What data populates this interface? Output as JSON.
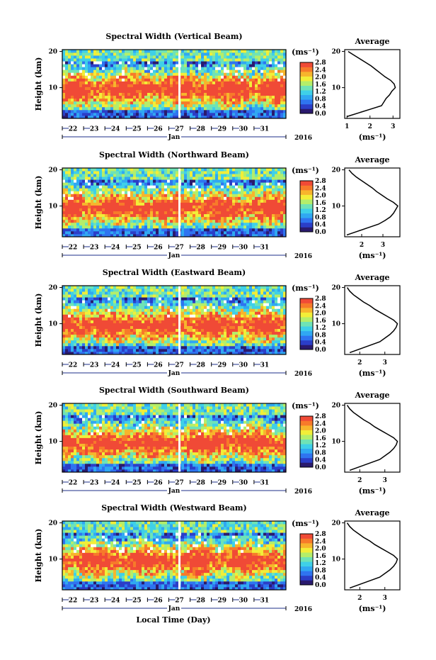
{
  "figure": {
    "xlabel": "Local Time (Day)",
    "month_label": "Jan",
    "year_label": "2016"
  },
  "colorbar": {
    "unit": "(ms⁻¹)",
    "ticks": [
      "0.0",
      "0.4",
      "0.8",
      "1.2",
      "1.6",
      "2.0",
      "2.4",
      "2.8"
    ],
    "colors": [
      "#2a1a6e",
      "#2b3ec8",
      "#2f74f0",
      "#30a8f2",
      "#3fd0e8",
      "#6fe3b6",
      "#b4ee6a",
      "#f2ee38",
      "#f7b52c",
      "#f77a2a",
      "#f04a36"
    ]
  },
  "chart_data": [
    {
      "type": "heatmap",
      "title": "Spectral Width (Vertical Beam)",
      "ylabel": "Height (km)",
      "x_ticks": [
        "22",
        "23",
        "24",
        "25",
        "26",
        "27",
        "28",
        "29",
        "30",
        "31"
      ],
      "y_ticks": [
        "10",
        "20"
      ],
      "ylim": [
        1.5,
        20.5
      ],
      "xlim": [
        21.5,
        32.0
      ],
      "data_gap_day": 27.0,
      "avg_title": "Average",
      "avg_unit": "(ms⁻¹)",
      "avg_xticks": [
        "1",
        "2",
        "3"
      ],
      "avg_xtick_values": [
        1,
        2,
        3
      ],
      "avg_xlim": [
        0.9,
        3.3
      ],
      "avg_profile": {
        "height": [
          2,
          3,
          4,
          5,
          6,
          7,
          8,
          9,
          10,
          11,
          12,
          13,
          14,
          15,
          16,
          17,
          18,
          19,
          20
        ],
        "value": [
          1.0,
          1.5,
          2.0,
          2.5,
          2.6,
          2.7,
          2.85,
          2.95,
          3.1,
          3.05,
          2.9,
          2.65,
          2.45,
          2.25,
          2.05,
          1.8,
          1.55,
          1.3,
          1.05
        ]
      }
    },
    {
      "type": "heatmap",
      "title": "Spectral Width (Northward Beam)",
      "ylabel": "Height (km)",
      "x_ticks": [
        "22",
        "23",
        "24",
        "25",
        "26",
        "27",
        "28",
        "29",
        "30",
        "31"
      ],
      "y_ticks": [
        "10",
        "20"
      ],
      "ylim": [
        1.5,
        20.5
      ],
      "xlim": [
        21.5,
        32.0
      ],
      "data_gap_day": 27.0,
      "avg_title": "Average",
      "avg_unit": "(ms⁻¹)",
      "avg_xticks": [
        "2",
        "3"
      ],
      "avg_xtick_values": [
        2,
        3
      ],
      "avg_xlim": [
        1.2,
        3.8
      ],
      "avg_profile": {
        "height": [
          2,
          3,
          4,
          5,
          6,
          7,
          8,
          9,
          10,
          11,
          12,
          13,
          14,
          15,
          16,
          17,
          18,
          19,
          20
        ],
        "value": [
          1.3,
          1.8,
          2.3,
          2.8,
          3.1,
          3.35,
          3.5,
          3.6,
          3.7,
          3.5,
          3.2,
          2.95,
          2.7,
          2.5,
          2.25,
          2.0,
          1.75,
          1.55,
          1.4
        ]
      }
    },
    {
      "type": "heatmap",
      "title": "Spectral Width (Eastward Beam)",
      "ylabel": "Height (km)",
      "x_ticks": [
        "22",
        "23",
        "24",
        "25",
        "26",
        "27",
        "28",
        "29",
        "30",
        "31"
      ],
      "y_ticks": [
        "10",
        "20"
      ],
      "ylim": [
        1.5,
        20.5
      ],
      "xlim": [
        21.5,
        32.0
      ],
      "data_gap_day": 27.0,
      "avg_title": "Average",
      "avg_unit": "(ms⁻¹)",
      "avg_xticks": [
        "2",
        "3"
      ],
      "avg_xtick_values": [
        2,
        3
      ],
      "avg_xlim": [
        1.4,
        3.6
      ],
      "avg_profile": {
        "height": [
          2,
          3,
          4,
          5,
          6,
          7,
          8,
          9,
          10,
          11,
          12,
          13,
          14,
          15,
          16,
          17,
          18,
          19,
          20
        ],
        "value": [
          1.6,
          2.0,
          2.4,
          2.8,
          3.0,
          3.2,
          3.35,
          3.45,
          3.5,
          3.35,
          3.1,
          2.85,
          2.6,
          2.4,
          2.15,
          1.95,
          1.75,
          1.6,
          1.5
        ]
      }
    },
    {
      "type": "heatmap",
      "title": "Spectral Width (Southward Beam)",
      "ylabel": "Height (km)",
      "x_ticks": [
        "22",
        "23",
        "24",
        "25",
        "26",
        "27",
        "28",
        "29",
        "30",
        "31"
      ],
      "y_ticks": [
        "10",
        "20"
      ],
      "ylim": [
        1.5,
        20.5
      ],
      "xlim": [
        21.5,
        32.0
      ],
      "data_gap_day": 27.0,
      "avg_title": "Average",
      "avg_unit": "(ms⁻¹)",
      "avg_xticks": [
        "2",
        "3"
      ],
      "avg_xtick_values": [
        2,
        3
      ],
      "avg_xlim": [
        1.4,
        3.6
      ],
      "avg_profile": {
        "height": [
          2,
          3,
          4,
          5,
          6,
          7,
          8,
          9,
          10,
          11,
          12,
          13,
          14,
          15,
          16,
          17,
          18,
          19,
          20
        ],
        "value": [
          1.6,
          2.0,
          2.4,
          2.8,
          3.0,
          3.2,
          3.35,
          3.45,
          3.5,
          3.35,
          3.1,
          2.85,
          2.6,
          2.4,
          2.15,
          1.95,
          1.75,
          1.6,
          1.5
        ]
      }
    },
    {
      "type": "heatmap",
      "title": "Spectral Width (Westward Beam)",
      "ylabel": "Height (km)",
      "x_ticks": [
        "22",
        "23",
        "24",
        "25",
        "26",
        "27",
        "28",
        "29",
        "30",
        "31"
      ],
      "y_ticks": [
        "10",
        "20"
      ],
      "ylim": [
        1.5,
        20.5
      ],
      "xlim": [
        21.5,
        32.0
      ],
      "data_gap_day": 27.0,
      "avg_title": "Average",
      "avg_unit": "(ms⁻¹)",
      "avg_xticks": [
        "2",
        "3"
      ],
      "avg_xtick_values": [
        2,
        3
      ],
      "avg_xlim": [
        1.4,
        3.6
      ],
      "avg_profile": {
        "height": [
          2,
          3,
          4,
          5,
          6,
          7,
          8,
          9,
          10,
          11,
          12,
          13,
          14,
          15,
          16,
          17,
          18,
          19,
          20
        ],
        "value": [
          1.6,
          2.0,
          2.4,
          2.8,
          3.0,
          3.2,
          3.35,
          3.45,
          3.5,
          3.35,
          3.1,
          2.85,
          2.6,
          2.4,
          2.15,
          1.95,
          1.75,
          1.6,
          1.5
        ]
      }
    }
  ]
}
